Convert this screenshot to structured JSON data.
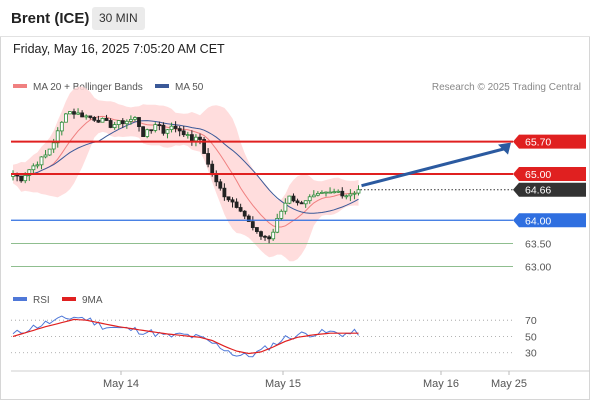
{
  "header": {
    "instrument": "Brent (ICE)",
    "interval": "30 MIN",
    "datetime": "Friday, May 16, 2025 7:05:20 AM CET"
  },
  "legend": {
    "ma20_label": "MA 20 + Bollinger Bands",
    "ma50_label": "MA 50",
    "credit": "Research © 2025 Trading Central",
    "rsi_label": "RSI",
    "rsi_ma_label": "9MA"
  },
  "colors": {
    "candle_up": "#2e8b3a",
    "candle_down": "#222222",
    "ma20": "#f08080",
    "bollinger_fill": "#ffd7d7",
    "ma50": "#3b5998",
    "resistance": "#e02020",
    "pivot": "#2f6fe0",
    "support": "#6aa86a",
    "current": "#333333",
    "rsi": "#4f78d8",
    "rsi_ma": "#e02020",
    "arrow": "#2b5aa0"
  },
  "chart_data": {
    "type": "candlestick",
    "x_labels": [
      "May 14",
      "May 15",
      "May 16",
      "May 25"
    ],
    "price_range": [
      62.6,
      66.6
    ],
    "price_path": [
      [
        0,
        65.0
      ],
      [
        2,
        64.9
      ],
      [
        4,
        65.1
      ],
      [
        6,
        65.25
      ],
      [
        8,
        65.4
      ],
      [
        10,
        65.7
      ],
      [
        12,
        66.1
      ],
      [
        13,
        66.35
      ],
      [
        14,
        66.35
      ],
      [
        16,
        66.3
      ],
      [
        18,
        66.25
      ],
      [
        20,
        66.2
      ],
      [
        22,
        66.15
      ],
      [
        24,
        66.05
      ],
      [
        26,
        66.1
      ],
      [
        28,
        66.15
      ],
      [
        30,
        66.2
      ],
      [
        31,
        66.05
      ],
      [
        32,
        65.85
      ],
      [
        33,
        65.9
      ],
      [
        34,
        65.95
      ],
      [
        35,
        66.1
      ],
      [
        36,
        66.05
      ],
      [
        37,
        65.9
      ],
      [
        38,
        66.0
      ],
      [
        40,
        66.0
      ],
      [
        41,
        65.95
      ],
      [
        42,
        65.9
      ],
      [
        43,
        65.8
      ],
      [
        44,
        65.75
      ],
      [
        45,
        65.75
      ],
      [
        46,
        65.75
      ],
      [
        48,
        65.2
      ],
      [
        50,
        64.8
      ],
      [
        52,
        64.55
      ],
      [
        54,
        64.4
      ],
      [
        56,
        64.25
      ],
      [
        58,
        63.95
      ],
      [
        60,
        63.7
      ],
      [
        62,
        63.65
      ],
      [
        63,
        63.6
      ],
      [
        64,
        63.75
      ],
      [
        65,
        64.0
      ],
      [
        66,
        64.2
      ],
      [
        68,
        64.55
      ],
      [
        70,
        64.35
      ],
      [
        72,
        64.45
      ],
      [
        74,
        64.5
      ],
      [
        76,
        64.55
      ],
      [
        78,
        64.58
      ],
      [
        80,
        64.62
      ],
      [
        82,
        64.55
      ],
      [
        84,
        64.62
      ],
      [
        85,
        64.66
      ]
    ],
    "levels": [
      {
        "value": 65.7,
        "label": "65.70",
        "kind": "resistance"
      },
      {
        "value": 65.0,
        "label": "65.00",
        "kind": "resistance"
      },
      {
        "value": 64.66,
        "label": "64.66",
        "kind": "current"
      },
      {
        "value": 64.0,
        "label": "64.00",
        "kind": "pivot"
      },
      {
        "value": 63.5,
        "label": "63.50",
        "kind": "support"
      },
      {
        "value": 63.0,
        "label": "63.00",
        "kind": "support"
      }
    ],
    "forecast_target": 65.7,
    "rsi": {
      "range": [
        10,
        85
      ],
      "ticks": [
        70,
        50,
        30
      ],
      "rsi_path": [
        [
          0,
          52
        ],
        [
          4,
          60
        ],
        [
          8,
          66
        ],
        [
          12,
          71
        ],
        [
          15,
          74
        ],
        [
          18,
          72
        ],
        [
          22,
          63
        ],
        [
          26,
          60
        ],
        [
          30,
          58
        ],
        [
          34,
          55
        ],
        [
          38,
          50
        ],
        [
          42,
          52
        ],
        [
          46,
          48
        ],
        [
          49,
          42
        ],
        [
          52,
          35
        ],
        [
          55,
          27
        ],
        [
          58,
          26
        ],
        [
          61,
          32
        ],
        [
          64,
          40
        ],
        [
          67,
          48
        ],
        [
          70,
          52
        ],
        [
          74,
          54
        ],
        [
          78,
          55
        ],
        [
          82,
          53
        ],
        [
          85,
          55
        ]
      ],
      "ma_path": [
        [
          0,
          50
        ],
        [
          4,
          56
        ],
        [
          8,
          62
        ],
        [
          12,
          67
        ],
        [
          15,
          71
        ],
        [
          18,
          70
        ],
        [
          22,
          66
        ],
        [
          26,
          62
        ],
        [
          30,
          59
        ],
        [
          34,
          56
        ],
        [
          38,
          53
        ],
        [
          42,
          51
        ],
        [
          46,
          49
        ],
        [
          49,
          45
        ],
        [
          52,
          38
        ],
        [
          55,
          32
        ],
        [
          58,
          29
        ],
        [
          61,
          31
        ],
        [
          64,
          37
        ],
        [
          67,
          44
        ],
        [
          70,
          49
        ],
        [
          74,
          52
        ],
        [
          78,
          54
        ],
        [
          82,
          54
        ],
        [
          85,
          54
        ]
      ]
    }
  }
}
